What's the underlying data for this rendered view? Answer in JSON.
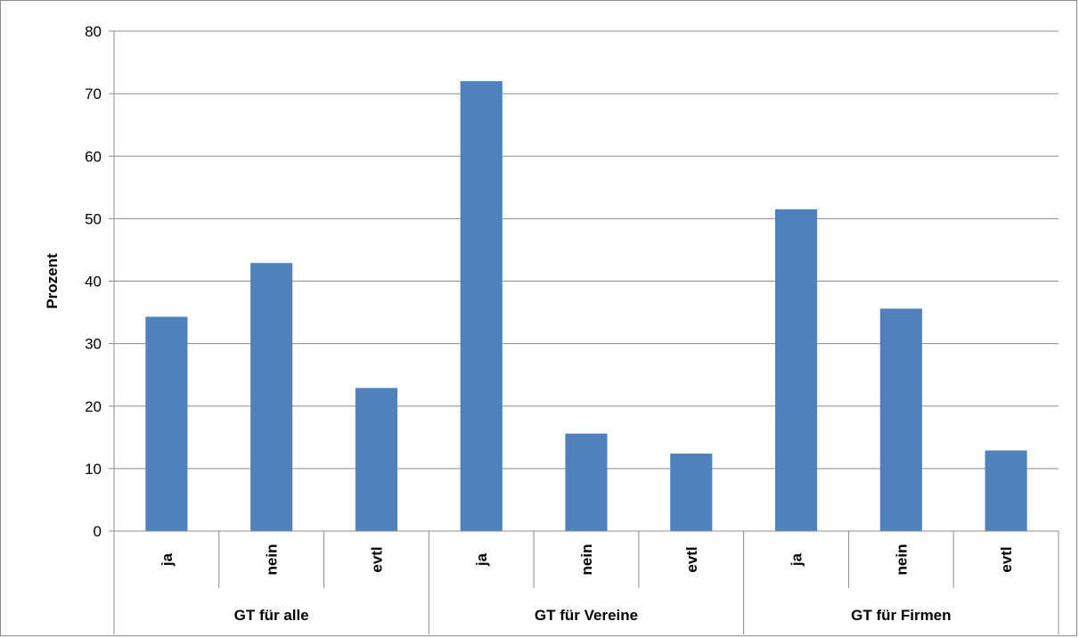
{
  "chart_data": {
    "type": "bar",
    "title": "",
    "xlabel": "",
    "ylabel": "Prozent",
    "ylim": [
      0,
      80
    ],
    "yticks": [
      0,
      10,
      20,
      30,
      40,
      50,
      60,
      70,
      80
    ],
    "grid": true,
    "legend": "none",
    "bar_color": "#4f81bd",
    "groups": [
      {
        "label": "GT für alle",
        "categories": [
          "ja",
          "nein",
          "evtl"
        ],
        "values": [
          34.3,
          42.9,
          22.9
        ]
      },
      {
        "label": "GT für Vereine",
        "categories": [
          "ja",
          "nein",
          "evtl"
        ],
        "values": [
          72.0,
          15.6,
          12.4
        ]
      },
      {
        "label": "GT für Firmen",
        "categories": [
          "ja",
          "nein",
          "evtl"
        ],
        "values": [
          51.5,
          35.6,
          12.9
        ]
      }
    ]
  }
}
